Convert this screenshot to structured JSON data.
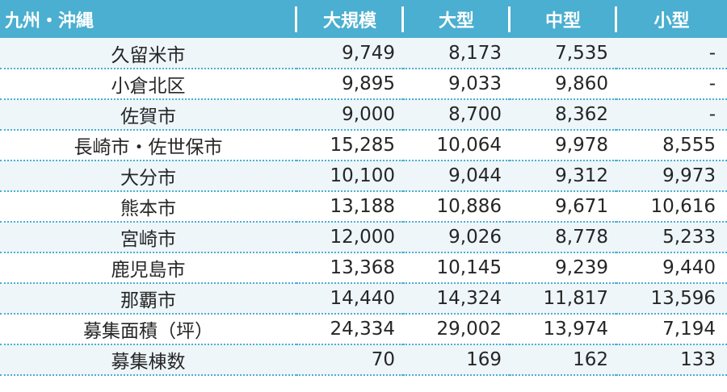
{
  "table": {
    "headers": [
      "九州・沖縄",
      "大規模",
      "大型",
      "中型",
      "小型"
    ],
    "rows": [
      {
        "name": "久留米市",
        "values": [
          "9,749",
          "8,173",
          "7,535",
          "-"
        ]
      },
      {
        "name": "小倉北区",
        "values": [
          "9,895",
          "9,033",
          "9,860",
          "-"
        ]
      },
      {
        "name": "佐賀市",
        "values": [
          "9,000",
          "8,700",
          "8,362",
          "-"
        ]
      },
      {
        "name": "長崎市・佐世保市",
        "values": [
          "15,285",
          "10,064",
          "9,978",
          "8,555"
        ]
      },
      {
        "name": "大分市",
        "values": [
          "10,100",
          "9,044",
          "9,312",
          "9,973"
        ]
      },
      {
        "name": "熊本市",
        "values": [
          "13,188",
          "10,886",
          "9,671",
          "10,616"
        ]
      },
      {
        "name": "宮崎市",
        "values": [
          "12,000",
          "9,026",
          "8,778",
          "5,233"
        ]
      },
      {
        "name": "鹿児島市",
        "values": [
          "13,368",
          "10,145",
          "9,239",
          "9,440"
        ]
      },
      {
        "name": "那覇市",
        "values": [
          "14,440",
          "14,324",
          "11,817",
          "13,596"
        ]
      },
      {
        "name": "募集面積（坪）",
        "values": [
          "24,334",
          "29,002",
          "13,974",
          "7,194"
        ]
      },
      {
        "name": "募集棟数",
        "values": [
          "70",
          "169",
          "162",
          "133"
        ]
      }
    ]
  },
  "colors": {
    "header_bg": "#4aafd0",
    "header_text": "#ffffff",
    "row_alt_bg": "#eef6fa",
    "divider": "#4aafd0",
    "text": "#262626"
  }
}
